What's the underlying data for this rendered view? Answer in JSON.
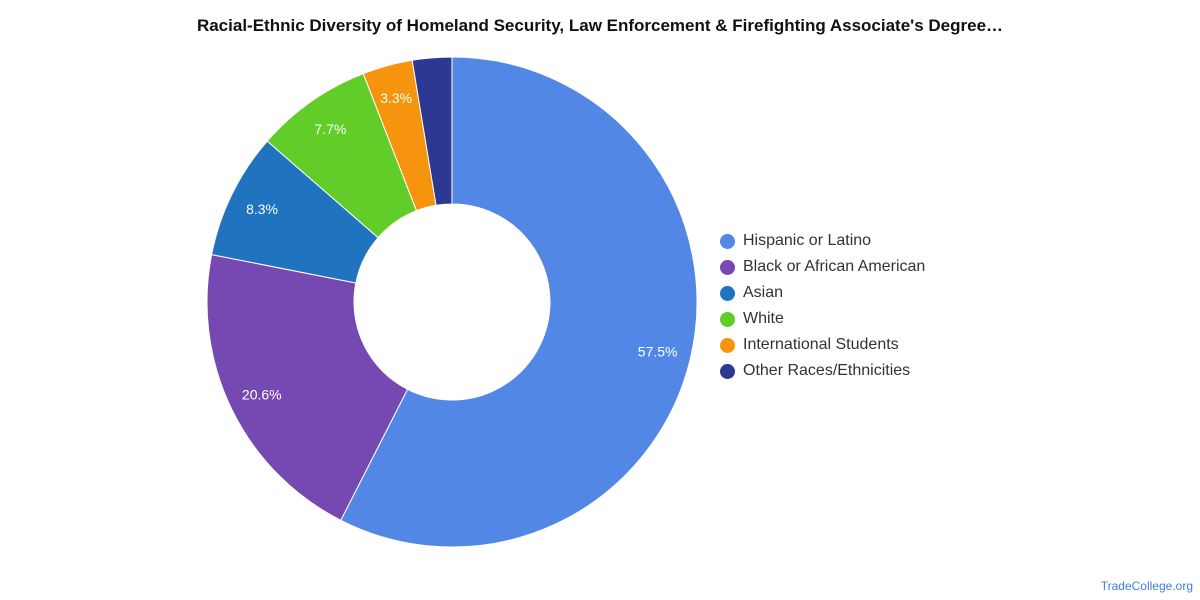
{
  "chart_data": {
    "type": "pie",
    "donut": true,
    "title": "Racial-Ethnic Diversity of Homeland Security, Law Enforcement & Firefighting Associate's Degree…",
    "legend_position": "right",
    "slices": [
      {
        "name": "Hispanic or Latino",
        "value": 57.5,
        "label": "57.5%",
        "color": "#5387e6"
      },
      {
        "name": "Black or African American",
        "value": 20.6,
        "label": "20.6%",
        "color": "#7648b2"
      },
      {
        "name": "Asian",
        "value": 8.3,
        "label": "8.3%",
        "color": "#1f73bf"
      },
      {
        "name": "White",
        "value": 7.7,
        "label": "7.7%",
        "color": "#62cd29"
      },
      {
        "name": "International Students",
        "value": 3.3,
        "label": "3.3%",
        "color": "#f7940d"
      },
      {
        "name": "Other Races/Ethnicities",
        "value": 2.6,
        "label": "",
        "color": "#2c3891"
      }
    ]
  },
  "source": "TradeCollege.org"
}
